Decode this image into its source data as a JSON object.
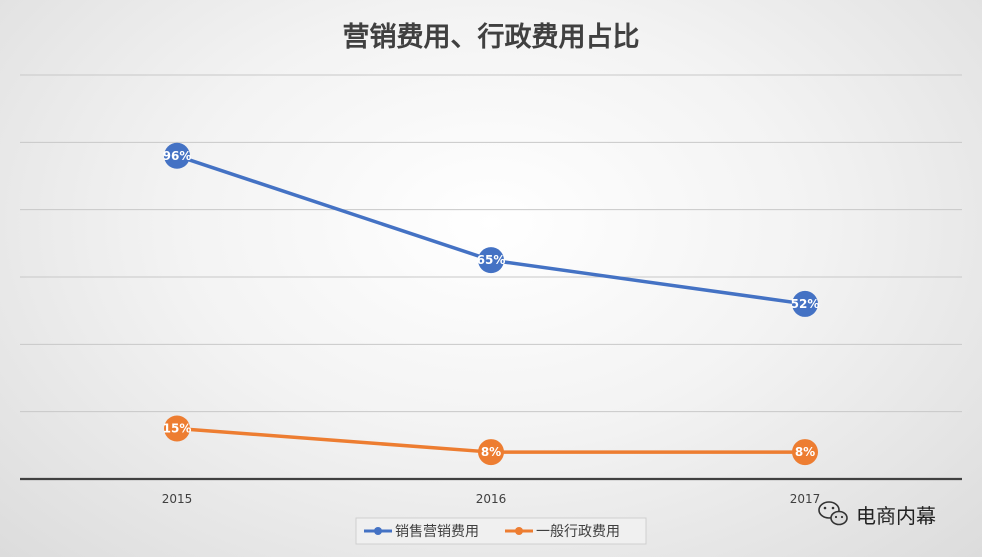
{
  "chart_data": {
    "type": "line",
    "title": "营销费用、行政费用占比",
    "categories": [
      "2015",
      "2016",
      "2017"
    ],
    "series": [
      {
        "name": "销售营销费用",
        "values": [
          96,
          65,
          52
        ],
        "labels": [
          "96%",
          "65%",
          "52%"
        ],
        "color": "#4472C4"
      },
      {
        "name": "一般行政费用",
        "values": [
          15,
          8,
          8
        ],
        "labels": [
          "15%",
          "8%",
          "8%"
        ],
        "color": "#ED7D31"
      }
    ],
    "ylim": [
      0,
      120
    ],
    "grid": true,
    "legend": "bottom"
  },
  "watermark": {
    "text": "电商内幕",
    "icon": "wechat-icon"
  }
}
